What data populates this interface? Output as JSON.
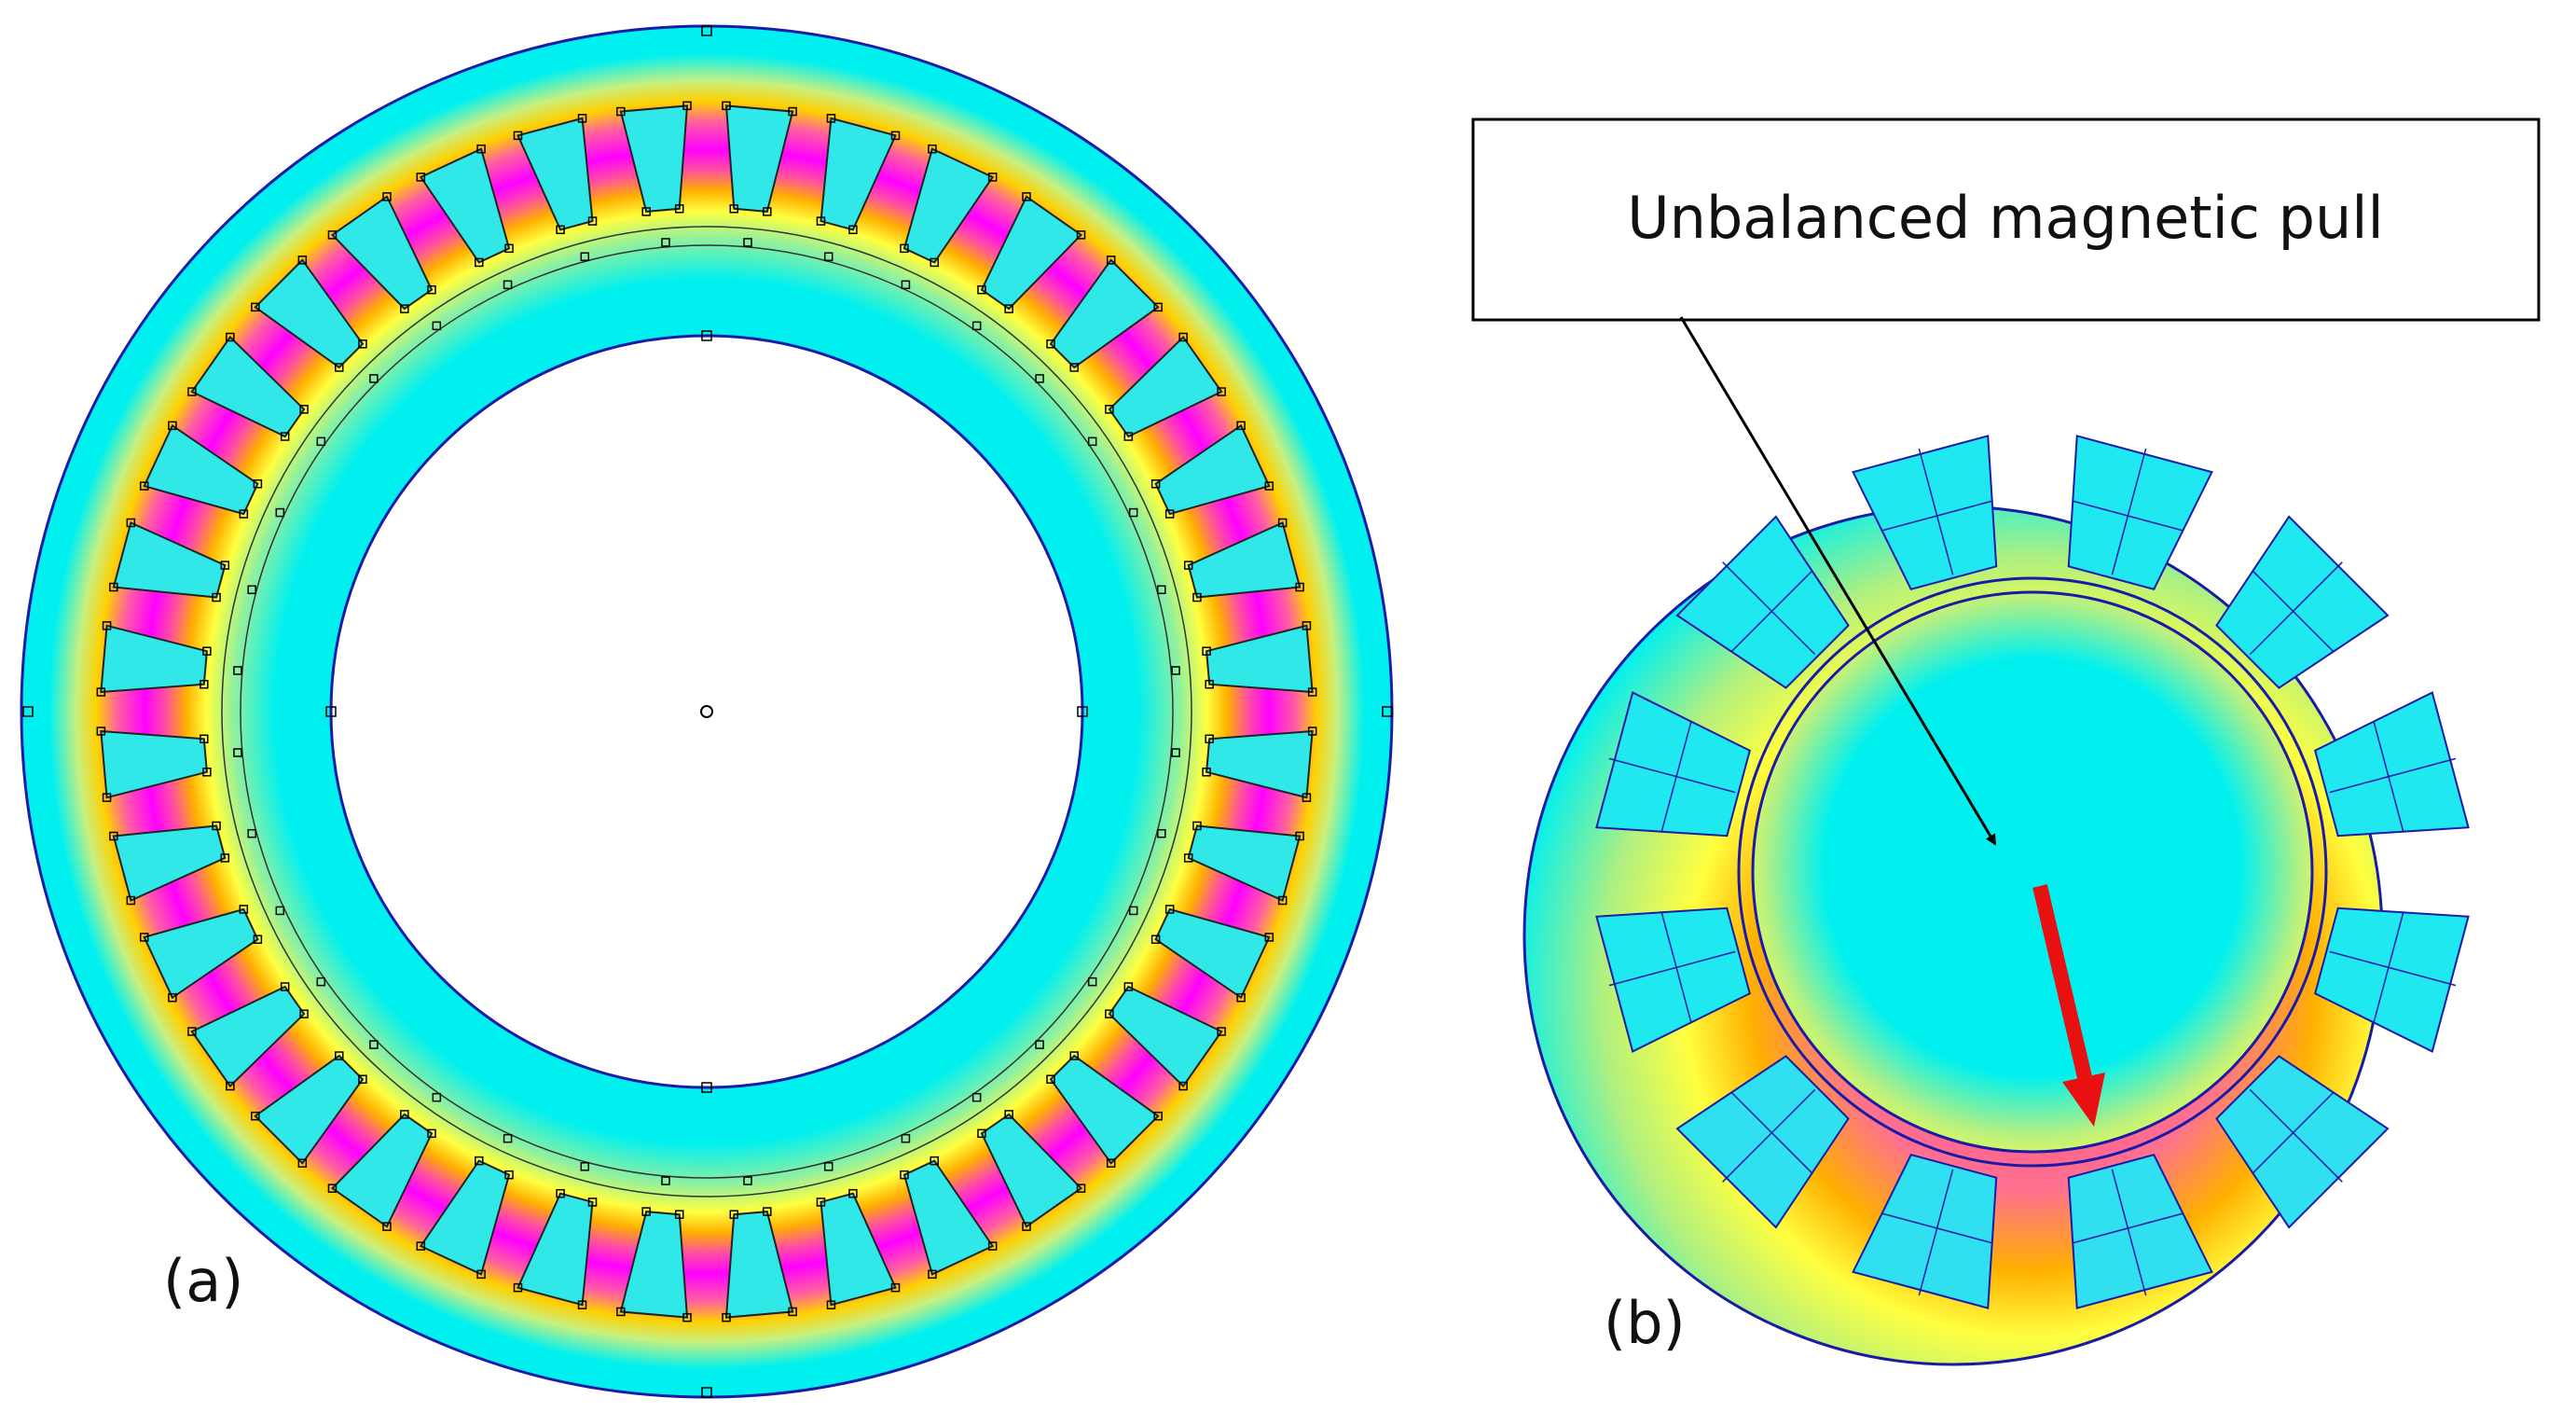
{
  "figure": {
    "panels": [
      {
        "id": "a",
        "label": "(a)"
      },
      {
        "id": "b",
        "label": "(b)"
      }
    ],
    "callout": {
      "text": "Unbalanced magnetic pull"
    },
    "colors": {
      "background": "#ffffff",
      "field_low": "#00f0f0",
      "field_mid_low": "#7af0a0",
      "field_mid": "#ffff40",
      "field_mid_high": "#ffb000",
      "field_high": "#ff4080",
      "field_peak": "#ff00ff",
      "outline": "#1a1aa8",
      "force_arrow": "#e81010",
      "pointer_arrow": "#000000"
    }
  }
}
